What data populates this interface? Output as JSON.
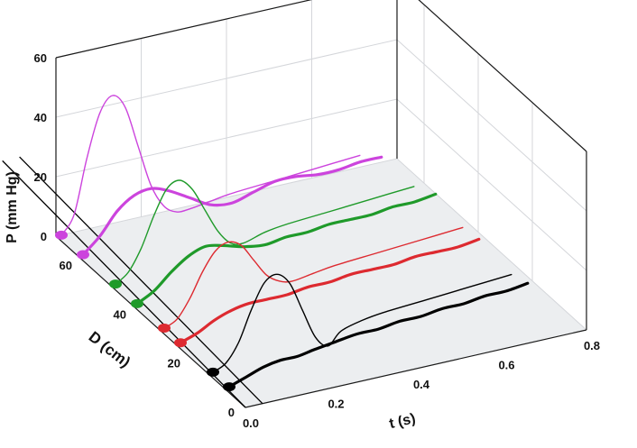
{
  "chart_data": {
    "type": "line",
    "projection": "3d-waterfall",
    "zlabel": "P (mm Hg)",
    "ylabel": "D (cm)",
    "xlabel": "t (s)",
    "zlim": [
      0,
      60
    ],
    "ylim": [
      0,
      70
    ],
    "xlim": [
      0,
      0.8
    ],
    "z_ticks": [
      "60",
      "40",
      "20",
      "0"
    ],
    "y_ticks": [
      "60",
      "40",
      "20",
      "0"
    ],
    "x_ticks": [
      "0.0",
      "0.2",
      "0.4",
      "0.6",
      "0.8"
    ],
    "grid": true,
    "legend": "none",
    "series": [
      {
        "color": "#cc44dd",
        "depth": 68,
        "style": "thin",
        "t": [
          0.0,
          0.03,
          0.06,
          0.09,
          0.12,
          0.15,
          0.18,
          0.21,
          0.24,
          0.27,
          0.3,
          0.35,
          0.4,
          0.5,
          0.6,
          0.7
        ],
        "p": [
          2,
          8,
          26,
          40,
          45,
          40,
          26,
          12,
          4,
          1,
          1,
          2,
          3,
          4,
          5,
          6
        ]
      },
      {
        "color": "#cc44dd",
        "depth": 60,
        "style": "thick",
        "t": [
          0.0,
          0.04,
          0.08,
          0.12,
          0.16,
          0.2,
          0.25,
          0.3,
          0.35,
          0.4,
          0.45,
          0.5,
          0.55,
          0.6,
          0.65,
          0.7
        ],
        "p": [
          2,
          7,
          14,
          18,
          19,
          17,
          13,
          9,
          8,
          10,
          12,
          12,
          11,
          11,
          12,
          12
        ]
      },
      {
        "color": "#1f9a2a",
        "depth": 48,
        "style": "thin",
        "t": [
          0.0,
          0.03,
          0.06,
          0.09,
          0.12,
          0.15,
          0.18,
          0.21,
          0.24,
          0.27,
          0.3,
          0.35,
          0.4,
          0.5,
          0.6,
          0.7
        ],
        "p": [
          2,
          5,
          12,
          22,
          30,
          32,
          28,
          20,
          12,
          7,
          6,
          8,
          9,
          10,
          11,
          12
        ]
      },
      {
        "color": "#1f9a2a",
        "depth": 40,
        "style": "thick",
        "t": [
          0.0,
          0.04,
          0.08,
          0.12,
          0.16,
          0.2,
          0.25,
          0.3,
          0.35,
          0.4,
          0.45,
          0.5,
          0.55,
          0.6,
          0.65,
          0.7
        ],
        "p": [
          2,
          5,
          10,
          14,
          16,
          15,
          13,
          12,
          13,
          13,
          14,
          14,
          14,
          15,
          15,
          16
        ]
      },
      {
        "color": "#dd2a30",
        "depth": 30,
        "style": "thin",
        "t": [
          0.0,
          0.03,
          0.06,
          0.09,
          0.12,
          0.15,
          0.18,
          0.21,
          0.24,
          0.27,
          0.3,
          0.35,
          0.4,
          0.5,
          0.6,
          0.7
        ],
        "p": [
          2,
          4,
          10,
          18,
          24,
          26,
          24,
          18,
          12,
          9,
          8,
          9,
          10,
          11,
          12,
          13
        ]
      },
      {
        "color": "#dd2a30",
        "depth": 24,
        "style": "thick",
        "t": [
          0.0,
          0.04,
          0.08,
          0.12,
          0.16,
          0.2,
          0.25,
          0.3,
          0.35,
          0.4,
          0.45,
          0.5,
          0.55,
          0.6,
          0.65,
          0.7
        ],
        "p": [
          2,
          4,
          7,
          9,
          10,
          10,
          10,
          11,
          11,
          12,
          12,
          12,
          13,
          13,
          13,
          14
        ]
      },
      {
        "color": "#000000",
        "depth": 12,
        "style": "thin",
        "t": [
          0.0,
          0.03,
          0.06,
          0.09,
          0.12,
          0.15,
          0.18,
          0.21,
          0.24,
          0.27,
          0.3,
          0.35,
          0.4,
          0.5,
          0.6,
          0.7
        ],
        "p": [
          2,
          4,
          10,
          20,
          28,
          30,
          26,
          16,
          6,
          2,
          6,
          8,
          9,
          10,
          11,
          12
        ]
      },
      {
        "color": "#000000",
        "depth": 6,
        "style": "thick",
        "t": [
          0.0,
          0.04,
          0.08,
          0.12,
          0.16,
          0.2,
          0.25,
          0.3,
          0.35,
          0.4,
          0.45,
          0.5,
          0.55,
          0.6,
          0.65,
          0.7
        ],
        "p": [
          2,
          4,
          6,
          7,
          7,
          8,
          9,
          10,
          10,
          11,
          11,
          12,
          12,
          13,
          13,
          14
        ]
      }
    ],
    "onset_guides": {
      "color": "#000000",
      "lines": [
        {
          "t_start": 0.0,
          "depth_from": 0,
          "depth_to": 68
        },
        {
          "t_start": 0.04,
          "depth_from": 0,
          "depth_to": 68
        }
      ]
    }
  }
}
